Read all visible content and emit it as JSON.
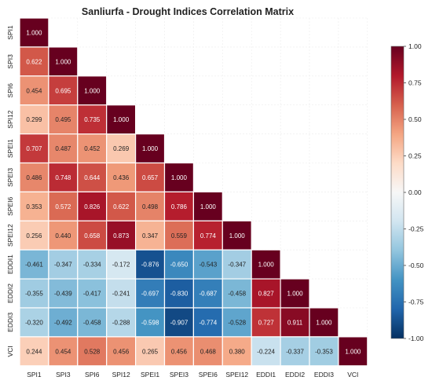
{
  "chart_data": {
    "type": "heatmap",
    "title": "Sanliurfa - Drought Indices Correlation Matrix",
    "xlabel": "",
    "ylabel": "",
    "x_labels": [
      "SPI1",
      "SPI3",
      "SPI6",
      "SPI12",
      "SPEI1",
      "SPEI3",
      "SPEI6",
      "SPEI12",
      "EDDI1",
      "EDDI2",
      "EDDI3",
      "VCI"
    ],
    "y_labels": [
      "SPI1",
      "SPI3",
      "SPI6",
      "SPI12",
      "SPEI1",
      "SPEI3",
      "SPEI6",
      "SPEI12",
      "EDDI1",
      "EDDI2",
      "EDDI3",
      "VCI"
    ],
    "mask": "upper triangle hidden",
    "grid": true,
    "colormap": "RdBu_r",
    "vmin": -1.0,
    "vmax": 1.0,
    "colorbar_ticks": [
      "1.00",
      "0.75",
      "0.50",
      "0.25",
      "0.00",
      "-0.25",
      "-0.50",
      "-0.75",
      "-1.00"
    ],
    "colorbar_tick_values": [
      1.0,
      0.75,
      0.5,
      0.25,
      0.0,
      -0.25,
      -0.5,
      -0.75,
      -1.0
    ],
    "colorbar_position": "right",
    "values": [
      [
        1.0
      ],
      [
        0.622,
        1.0
      ],
      [
        0.454,
        0.695,
        1.0
      ],
      [
        0.299,
        0.495,
        0.735,
        1.0
      ],
      [
        0.707,
        0.487,
        0.452,
        0.269,
        1.0
      ],
      [
        0.486,
        0.748,
        0.644,
        0.436,
        0.657,
        1.0
      ],
      [
        0.353,
        0.572,
        0.826,
        0.622,
        0.498,
        0.786,
        1.0
      ],
      [
        0.256,
        0.44,
        0.658,
        0.873,
        0.347,
        0.559,
        0.774,
        1.0
      ],
      [
        -0.461,
        -0.347,
        -0.334,
        -0.172,
        -0.876,
        -0.65,
        -0.543,
        -0.347,
        1.0
      ],
      [
        -0.355,
        -0.439,
        -0.417,
        -0.241,
        -0.697,
        -0.83,
        -0.687,
        -0.458,
        0.827,
        1.0
      ],
      [
        -0.32,
        -0.492,
        -0.458,
        -0.288,
        -0.598,
        -0.907,
        -0.774,
        -0.528,
        0.727,
        0.911,
        1.0
      ],
      [
        0.244,
        0.454,
        0.528,
        0.456,
        0.265,
        0.456,
        0.468,
        0.38,
        -0.224,
        -0.337,
        -0.353,
        1.0
      ]
    ]
  }
}
